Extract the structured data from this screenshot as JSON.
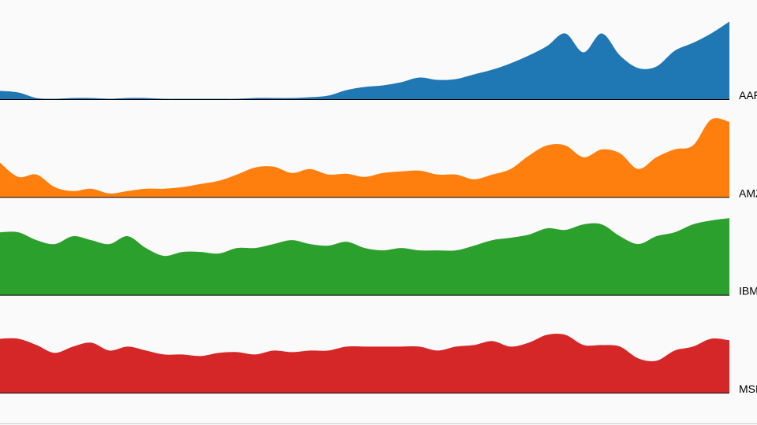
{
  "chart_data": {
    "type": "area",
    "layout": "small-multiples",
    "series": [
      {
        "name": "AAPL",
        "color": "#1f77b4",
        "values": [
          11,
          9,
          2,
          1,
          2,
          2,
          1,
          2,
          2,
          1,
          1,
          1,
          1,
          1,
          2,
          2,
          2,
          3,
          5,
          12,
          16,
          18,
          22,
          28,
          25,
          26,
          32,
          38,
          46,
          56,
          68,
          84,
          60,
          84,
          56,
          40,
          42,
          62,
          72,
          84,
          99
        ]
      },
      {
        "name": "AMZN",
        "color": "#ff7f0e",
        "values": [
          44,
          26,
          29,
          13,
          8,
          11,
          5,
          8,
          11,
          11,
          13,
          17,
          21,
          29,
          38,
          39,
          31,
          36,
          29,
          30,
          26,
          31,
          33,
          34,
          29,
          29,
          23,
          29,
          36,
          53,
          66,
          66,
          51,
          61,
          56,
          36,
          51,
          61,
          66,
          99,
          96
        ]
      },
      {
        "name": "IBM",
        "color": "#2ca02c",
        "values": [
          80,
          80,
          70,
          65,
          75,
          70,
          65,
          75,
          60,
          50,
          55,
          55,
          53,
          60,
          60,
          65,
          70,
          65,
          63,
          68,
          60,
          57,
          60,
          57,
          57,
          57,
          63,
          70,
          73,
          77,
          85,
          83,
          90,
          90,
          75,
          65,
          75,
          80,
          90,
          95,
          98
        ]
      },
      {
        "name": "MSFT",
        "color": "#d62728",
        "values": [
          69,
          69,
          61,
          51,
          59,
          64,
          54,
          59,
          54,
          49,
          49,
          47,
          51,
          52,
          49,
          54,
          52,
          54,
          54,
          59,
          59,
          59,
          59,
          59,
          54,
          59,
          61,
          66,
          59,
          64,
          74,
          74,
          61,
          61,
          59,
          44,
          41,
          54,
          59,
          69,
          67
        ]
      }
    ]
  }
}
